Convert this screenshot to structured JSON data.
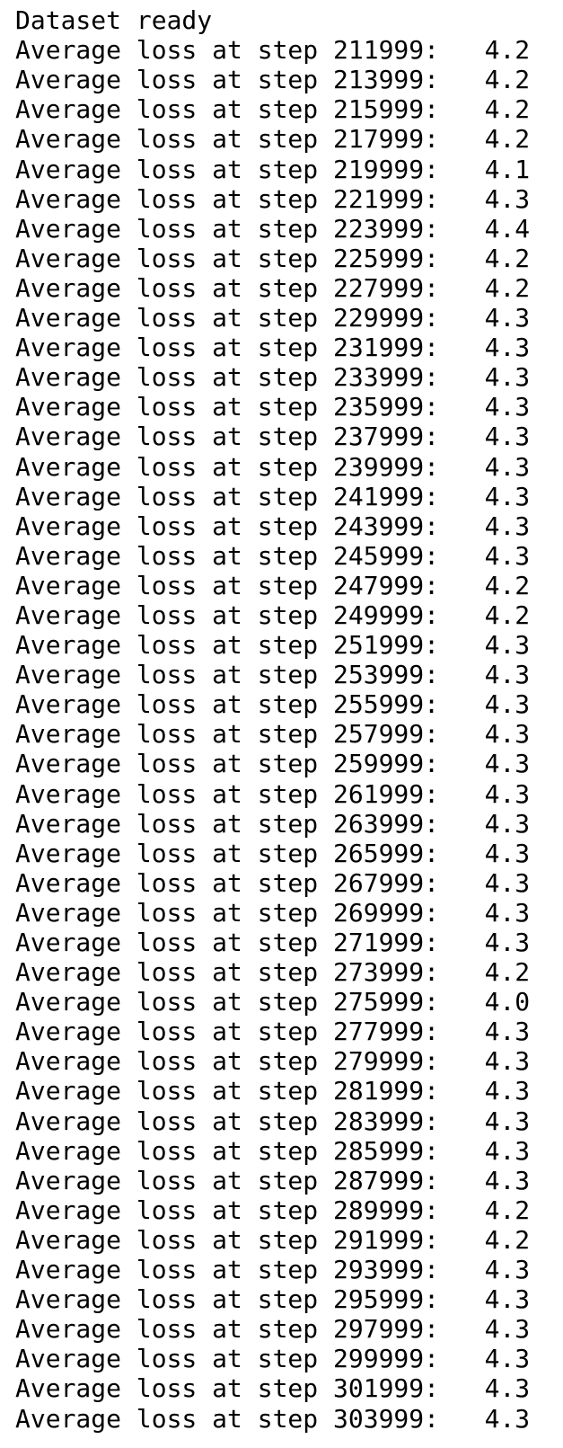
{
  "terminal": {
    "lines": [
      ".......................",
      "Dataset ready",
      "Average loss at step 211999:   4.2",
      "Average loss at step 213999:   4.2",
      "Average loss at step 215999:   4.2",
      "Average loss at step 217999:   4.2",
      "Average loss at step 219999:   4.1",
      "Average loss at step 221999:   4.3",
      "Average loss at step 223999:   4.4",
      "Average loss at step 225999:   4.2",
      "Average loss at step 227999:   4.2",
      "Average loss at step 229999:   4.3",
      "Average loss at step 231999:   4.3",
      "Average loss at step 233999:   4.3",
      "Average loss at step 235999:   4.3",
      "Average loss at step 237999:   4.3",
      "Average loss at step 239999:   4.3",
      "Average loss at step 241999:   4.3",
      "Average loss at step 243999:   4.3",
      "Average loss at step 245999:   4.3",
      "Average loss at step 247999:   4.2",
      "Average loss at step 249999:   4.2",
      "Average loss at step 251999:   4.3",
      "Average loss at step 253999:   4.3",
      "Average loss at step 255999:   4.3",
      "Average loss at step 257999:   4.3",
      "Average loss at step 259999:   4.3",
      "Average loss at step 261999:   4.3",
      "Average loss at step 263999:   4.3",
      "Average loss at step 265999:   4.3",
      "Average loss at step 267999:   4.3",
      "Average loss at step 269999:   4.3",
      "Average loss at step 271999:   4.3",
      "Average loss at step 273999:   4.2",
      "Average loss at step 275999:   4.0",
      "Average loss at step 277999:   4.3",
      "Average loss at step 279999:   4.3",
      "Average loss at step 281999:   4.3",
      "Average loss at step 283999:   4.3",
      "Average loss at step 285999:   4.3",
      "Average loss at step 287999:   4.3",
      "Average loss at step 289999:   4.2",
      "Average loss at step 291999:   4.2",
      "Average loss at step 293999:   4.3",
      "Average loss at step 295999:   4.3",
      "Average loss at step 297999:   4.3",
      "Average loss at step 299999:   4.3",
      "Average loss at step 301999:   4.3",
      "Average loss at step 303999:   4.3"
    ]
  }
}
